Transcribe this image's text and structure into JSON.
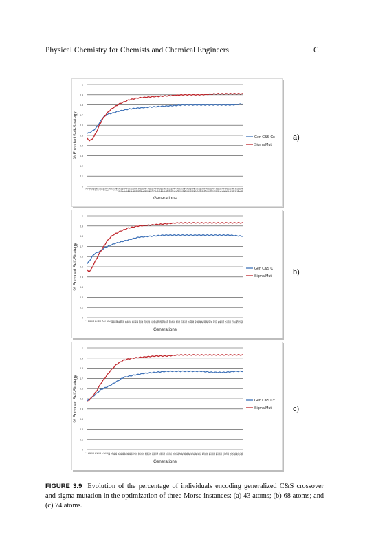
{
  "header": {
    "title": "Physical Chemistry for Chemists and Chemical Engineers",
    "letter": "C"
  },
  "caption": {
    "label": "FIGURE 3.9",
    "text": "Evolution of the percentage of individuals encoding generalized C&S crossover and sigma mutation in the optimization of three Morse instances: (a) 43 atoms; (b) 68 atoms; and (c) 74 atoms."
  },
  "colors": {
    "series1": "#3f72b8",
    "series2": "#c0272d",
    "grid": "#444444"
  },
  "chart_data": [
    {
      "type": "line",
      "panel_label": "a)",
      "xlabel": "Generations",
      "ylabel": "% Encoded Self-Strategy",
      "ylim": [
        0,
        1
      ],
      "yticks": [
        "0",
        "0.1",
        "0.2",
        "0.3",
        "0.4",
        "0.5",
        "0.6",
        "0.7",
        "0.8",
        "0.9",
        "1"
      ],
      "xticks": [
        "1",
        "7",
        "13",
        "19",
        "25",
        "31",
        "37",
        "43",
        "49",
        "55",
        "61",
        "67",
        "73",
        "79",
        "85",
        "91",
        "97",
        "103",
        "109",
        "115",
        "121",
        "127",
        "133",
        "139",
        "145",
        "151",
        "157",
        "163",
        "169",
        "175",
        "181",
        "187",
        "193",
        "199",
        "205",
        "211",
        "217",
        "223",
        "229",
        "235",
        "241",
        "247",
        "253",
        "259",
        "265",
        "271",
        "277",
        "283",
        "289",
        "295",
        "301",
        "307",
        "313",
        "319",
        "325",
        "331",
        "337",
        "343",
        "349",
        "355",
        "361",
        "367",
        "373",
        "379",
        "385",
        "391",
        "397",
        "403",
        "409",
        "415",
        "421",
        "427",
        "433",
        "439",
        "445",
        "451",
        "457",
        "463",
        "469",
        "475",
        "481"
      ],
      "legend_position": "right",
      "series": [
        {
          "name": "Gen C&S Cx",
          "x": [
            1,
            10,
            20,
            30,
            40,
            50,
            65,
            80,
            100,
            130,
            160,
            200,
            250,
            300,
            350,
            400,
            450,
            481
          ],
          "y": [
            0.52,
            0.53,
            0.55,
            0.58,
            0.63,
            0.68,
            0.71,
            0.72,
            0.74,
            0.76,
            0.77,
            0.78,
            0.79,
            0.8,
            0.8,
            0.8,
            0.8,
            0.81
          ]
        },
        {
          "name": "Sigma Mut",
          "x": [
            1,
            8,
            15,
            22,
            30,
            40,
            50,
            65,
            80,
            100,
            130,
            160,
            200,
            250,
            300,
            350,
            400,
            450,
            481
          ],
          "y": [
            0.47,
            0.45,
            0.46,
            0.49,
            0.54,
            0.61,
            0.67,
            0.73,
            0.77,
            0.81,
            0.85,
            0.87,
            0.88,
            0.89,
            0.9,
            0.9,
            0.91,
            0.91,
            0.91
          ]
        }
      ]
    },
    {
      "type": "line",
      "panel_label": "b)",
      "xlabel": "Generations",
      "ylabel": "% Encoded Self-Strategy",
      "ylim": [
        0,
        1
      ],
      "yticks": [
        "0",
        "0.1",
        "0.2",
        "0.3",
        "0.4",
        "0.5",
        "0.6",
        "0.7",
        "0.8",
        "0.9",
        "1"
      ],
      "xticks": [
        "1",
        "10",
        "19",
        "28",
        "37",
        "46",
        "55",
        "64",
        "73",
        "82",
        "91",
        "100",
        "109",
        "118",
        "127",
        "136",
        "145",
        "154",
        "163",
        "172",
        "181",
        "190",
        "199",
        "208",
        "217",
        "226",
        "235",
        "244",
        "253",
        "262",
        "271",
        "280",
        "289",
        "298",
        "307",
        "316",
        "325",
        "334",
        "343",
        "352",
        "361",
        "370",
        "379",
        "388",
        "397",
        "406",
        "415",
        "424",
        "433",
        "442",
        "451",
        "460",
        "469",
        "478",
        "487",
        "496",
        "505",
        "514",
        "523",
        "532",
        "541",
        "550",
        "559",
        "568",
        "577",
        "586",
        "595",
        "604"
      ],
      "legend_position": "right",
      "series": [
        {
          "name": "Gen C&S C",
          "x": [
            1,
            10,
            20,
            30,
            40,
            55,
            70,
            90,
            110,
            140,
            170,
            200,
            250,
            300,
            350,
            400,
            450,
            500,
            550,
            604
          ],
          "y": [
            0.53,
            0.56,
            0.6,
            0.63,
            0.64,
            0.66,
            0.69,
            0.71,
            0.73,
            0.75,
            0.77,
            0.79,
            0.8,
            0.81,
            0.81,
            0.81,
            0.81,
            0.81,
            0.81,
            0.8
          ]
        },
        {
          "name": "Sigma Mut",
          "x": [
            1,
            8,
            15,
            25,
            35,
            50,
            65,
            80,
            100,
            130,
            160,
            200,
            250,
            300,
            350,
            400,
            450,
            500,
            550,
            604
          ],
          "y": [
            0.47,
            0.45,
            0.47,
            0.52,
            0.57,
            0.64,
            0.7,
            0.76,
            0.81,
            0.85,
            0.88,
            0.9,
            0.91,
            0.92,
            0.93,
            0.93,
            0.93,
            0.93,
            0.93,
            0.93
          ]
        }
      ]
    },
    {
      "type": "line",
      "panel_label": "c)",
      "xlabel": "Generations",
      "ylabel": "% Encoded Self-Strategy",
      "ylim": [
        0,
        1
      ],
      "yticks": [
        "0",
        "0.1",
        "0.2",
        "0.3",
        "0.4",
        "0.5",
        "0.6",
        "0.7",
        "0.8",
        "0.9",
        "1"
      ],
      "xticks": [
        "1",
        "11",
        "21",
        "31",
        "41",
        "51",
        "61",
        "71",
        "81",
        "91",
        "101",
        "111",
        "121",
        "131",
        "141",
        "151",
        "161",
        "171",
        "181",
        "191",
        "201",
        "211",
        "221",
        "231",
        "241",
        "251",
        "261",
        "271",
        "281",
        "291",
        "301",
        "311",
        "321",
        "331",
        "341",
        "351",
        "361",
        "371",
        "381",
        "391",
        "401",
        "411",
        "421",
        "431",
        "441",
        "451",
        "461",
        "471",
        "481",
        "491",
        "501",
        "511",
        "521",
        "531",
        "541",
        "551",
        "561",
        "571",
        "581",
        "591",
        "601",
        "611",
        "621",
        "631",
        "641",
        "651",
        "661",
        "671",
        "681"
      ],
      "legend_position": "right",
      "series": [
        {
          "name": "Gen C&S Cx",
          "x": [
            1,
            15,
            30,
            45,
            60,
            80,
            100,
            130,
            160,
            200,
            250,
            300,
            350,
            400,
            450,
            500,
            550,
            600,
            650,
            681
          ],
          "y": [
            0.48,
            0.5,
            0.53,
            0.56,
            0.59,
            0.61,
            0.63,
            0.67,
            0.71,
            0.73,
            0.75,
            0.76,
            0.77,
            0.77,
            0.77,
            0.77,
            0.76,
            0.76,
            0.77,
            0.77
          ]
        },
        {
          "name": "Sigma Mut",
          "x": [
            1,
            15,
            30,
            45,
            60,
            80,
            100,
            130,
            160,
            200,
            250,
            300,
            350,
            400,
            450,
            500,
            550,
            600,
            650,
            681
          ],
          "y": [
            0.47,
            0.5,
            0.54,
            0.59,
            0.65,
            0.71,
            0.77,
            0.84,
            0.88,
            0.9,
            0.91,
            0.92,
            0.92,
            0.93,
            0.93,
            0.93,
            0.93,
            0.93,
            0.93,
            0.93
          ]
        }
      ]
    }
  ]
}
